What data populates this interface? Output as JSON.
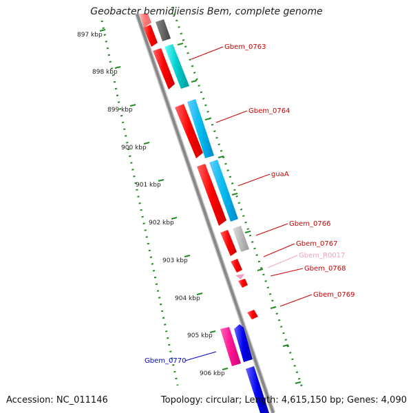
{
  "title": "Geobacter bemidjiensis Bem, complete genome",
  "footer": {
    "accession": "Accession: NC_011146",
    "summary": "Topology: circular; Length: 4,615,150 bp; Genes: 4,090"
  },
  "ruler": [
    "897 kbp",
    "898 kbp",
    "899 kbp",
    "900 kbp",
    "901 kbp",
    "902 kbp",
    "903 kbp",
    "904 kbp",
    "905 kbp",
    "906 kbp"
  ],
  "genes": [
    {
      "name": "Gbem_0763",
      "color": "#cc0000"
    },
    {
      "name": "Gbem_0764",
      "color": "#cc0000"
    },
    {
      "name": "guaA",
      "color": "#cc0000"
    },
    {
      "name": "Gbem_0766",
      "color": "#cc0000"
    },
    {
      "name": "Gbem_0767",
      "color": "#cc0000"
    },
    {
      "name": "Gbem_R0017",
      "color": "#f0a0c0"
    },
    {
      "name": "Gbem_0768",
      "color": "#cc0000"
    },
    {
      "name": "Gbem_0769",
      "color": "#cc0000"
    },
    {
      "name": "Gbem_0770",
      "color": "#0000cc"
    }
  ]
}
